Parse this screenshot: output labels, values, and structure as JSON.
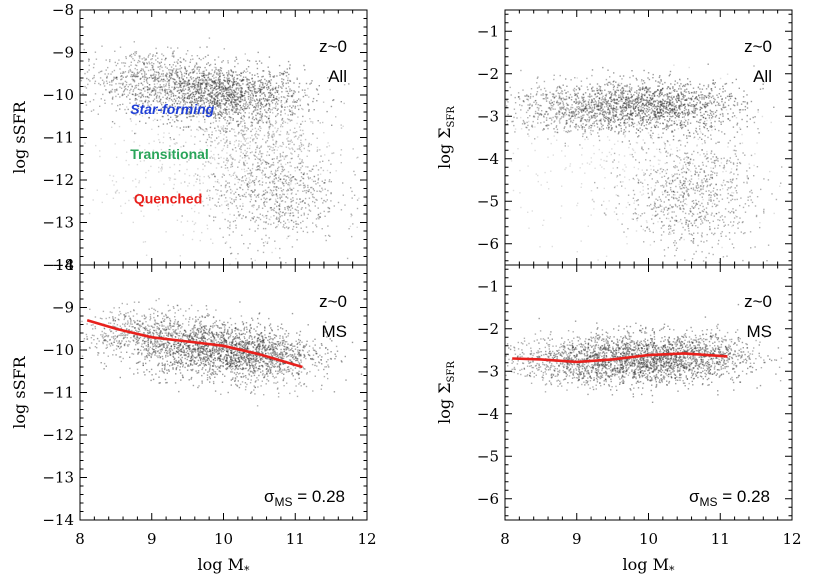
{
  "chart_data": [
    {
      "id": "top-left",
      "type": "scatter",
      "xlim": [
        8,
        12
      ],
      "ylim": [
        -14,
        -8
      ],
      "xticks": [
        "8",
        "9",
        "10",
        "11",
        "12"
      ],
      "yticks": [
        "−14",
        "−13",
        "−12",
        "−11",
        "−10",
        "−9",
        "−8"
      ],
      "ylabel_main": "log sSFR",
      "ylabel_sub": "",
      "redshift_label": "z~0",
      "sample_label": "All",
      "class_labels": [
        {
          "text": "Star-forming",
          "color": "#1f3fd6",
          "italic": true,
          "x": 8.7,
          "y": -10.45
        },
        {
          "text": "Transitional",
          "color": "#2aa55a",
          "italic": false,
          "x": 8.7,
          "y": -11.5
        },
        {
          "text": "Quenched",
          "color": "#e8201c",
          "italic": false,
          "x": 8.75,
          "y": -12.55
        }
      ]
    },
    {
      "id": "top-right",
      "type": "scatter",
      "xlim": [
        8,
        12
      ],
      "ylim": [
        -6.5,
        -0.5
      ],
      "xticks": [
        "8",
        "9",
        "10",
        "11",
        "12"
      ],
      "yticks": [
        "−6",
        "−5",
        "−4",
        "−3",
        "−2",
        "−1"
      ],
      "ylabel_main": "log Σ",
      "ylabel_sub": "SFR",
      "redshift_label": "z~0",
      "sample_label": "All"
    },
    {
      "id": "bottom-left",
      "type": "scatter",
      "xlim": [
        8,
        12
      ],
      "ylim": [
        -14,
        -8
      ],
      "xticks": [
        "8",
        "9",
        "10",
        "11",
        "12"
      ],
      "yticks": [
        "−14",
        "−13",
        "−12",
        "−11",
        "−10",
        "−9",
        "−8"
      ],
      "xlabel_main": "log M",
      "xlabel_sub": "*",
      "ylabel_main": "log sSFR",
      "ylabel_sub": "",
      "redshift_label": "z~0",
      "sample_label": "MS",
      "sigma_label": {
        "prefix": "σ",
        "sub": "MS",
        "value": " = 0.28"
      },
      "median_line": {
        "color": "#e8201c",
        "x": [
          8.1,
          8.5,
          9.0,
          9.5,
          10.0,
          10.5,
          11.1
        ],
        "y": [
          -9.3,
          -9.5,
          -9.7,
          -9.8,
          -9.9,
          -10.1,
          -10.4
        ]
      }
    },
    {
      "id": "bottom-right",
      "type": "scatter",
      "xlim": [
        8,
        12
      ],
      "ylim": [
        -6.5,
        -0.5
      ],
      "xticks": [
        "8",
        "9",
        "10",
        "11",
        "12"
      ],
      "yticks": [
        "−6",
        "−5",
        "−4",
        "−3",
        "−2",
        "−1"
      ],
      "xlabel_main": "log M",
      "xlabel_sub": "*",
      "ylabel_main": "log Σ",
      "ylabel_sub": "SFR",
      "redshift_label": "z~0",
      "sample_label": "MS",
      "sigma_label": {
        "prefix": "σ",
        "sub": "MS",
        "value": " = 0.28"
      },
      "median_line": {
        "color": "#e8201c",
        "x": [
          8.1,
          8.5,
          9.0,
          9.5,
          10.0,
          10.5,
          11.1
        ],
        "y": [
          -2.7,
          -2.72,
          -2.78,
          -2.72,
          -2.62,
          -2.58,
          -2.65
        ]
      }
    }
  ]
}
